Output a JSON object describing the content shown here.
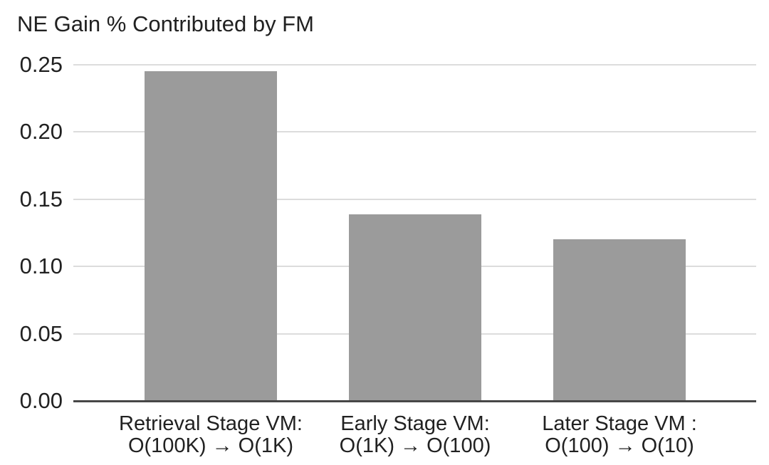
{
  "chart_data": {
    "type": "bar",
    "title": "NE Gain % Contributed by FM",
    "categories": [
      {
        "line1": "Retrieval Stage VM:",
        "line2": "O(100K) → O(1K)"
      },
      {
        "line1": "Early Stage VM:",
        "line2": "O(1K) → O(100)"
      },
      {
        "line1": "Later Stage VM :",
        "line2": "O(100) → O(10)"
      }
    ],
    "values": [
      0.245,
      0.139,
      0.12
    ],
    "xlabel": "",
    "ylabel": "",
    "y_ticks": [
      "0.00",
      "0.05",
      "0.10",
      "0.15",
      "0.20",
      "0.25"
    ],
    "ylim": [
      0,
      0.25
    ],
    "grid": "horizontal",
    "legend": "none",
    "bar_color": "#9b9b9b",
    "gridline_color": "#dcdcdc",
    "axis_line_color": "#474747",
    "text_color": "#212121",
    "background_color": "#ffffff"
  }
}
